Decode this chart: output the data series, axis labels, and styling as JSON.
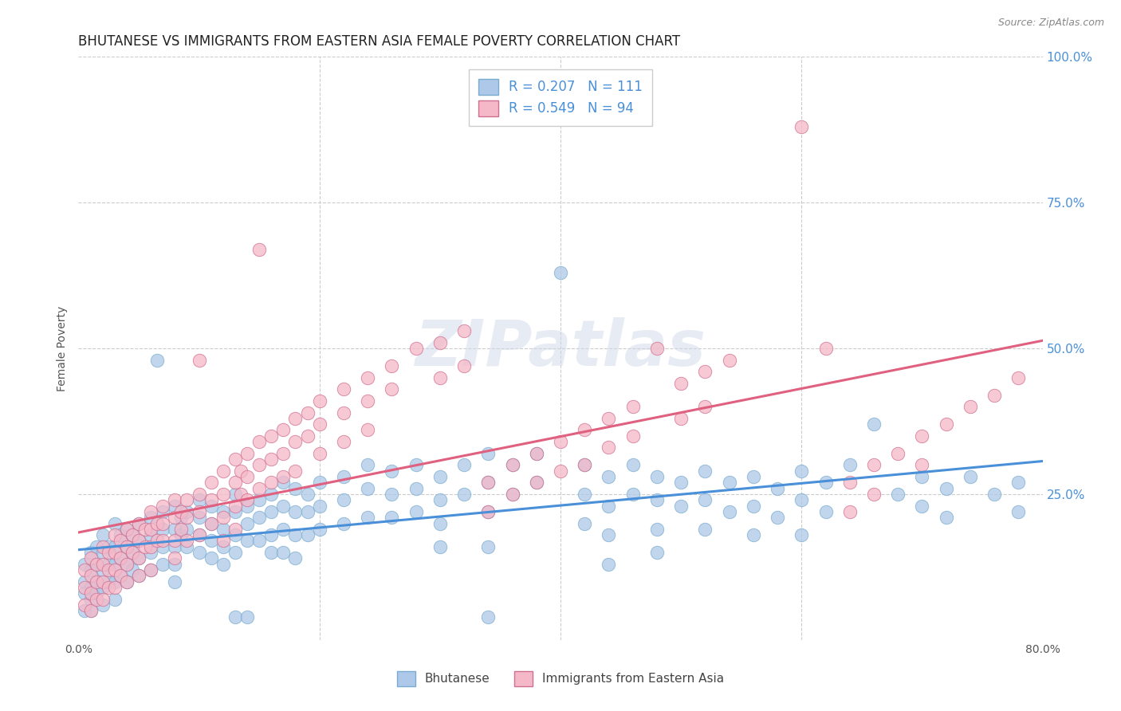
{
  "title": "BHUTANESE VS IMMIGRANTS FROM EASTERN ASIA FEMALE POVERTY CORRELATION CHART",
  "source": "Source: ZipAtlas.com",
  "ylabel": "Female Poverty",
  "xlim": [
    0.0,
    0.8
  ],
  "ylim": [
    0.0,
    1.0
  ],
  "bhutanese_color": "#adc8e8",
  "eastern_asia_color": "#f5b8c8",
  "bhutanese_R": 0.207,
  "bhutanese_N": 111,
  "eastern_asia_R": 0.549,
  "eastern_asia_N": 94,
  "trend_blue": "#4a90d9",
  "trend_pink": "#e06080",
  "legend_label_1": "Bhutanese",
  "legend_label_2": "Immigrants from Eastern Asia",
  "background_color": "#ffffff",
  "grid_color": "#cccccc",
  "title_color": "#222222",
  "axis_label_color": "#555555",
  "bhutanese_seed": 42,
  "eastern_asia_seed": 7,
  "bhutanese_points": [
    [
      0.005,
      0.13
    ],
    [
      0.005,
      0.1
    ],
    [
      0.005,
      0.08
    ],
    [
      0.005,
      0.05
    ],
    [
      0.01,
      0.15
    ],
    [
      0.01,
      0.12
    ],
    [
      0.01,
      0.09
    ],
    [
      0.01,
      0.07
    ],
    [
      0.01,
      0.05
    ],
    [
      0.015,
      0.16
    ],
    [
      0.015,
      0.13
    ],
    [
      0.015,
      0.1
    ],
    [
      0.015,
      0.08
    ],
    [
      0.02,
      0.18
    ],
    [
      0.02,
      0.15
    ],
    [
      0.02,
      0.12
    ],
    [
      0.02,
      0.09
    ],
    [
      0.02,
      0.06
    ],
    [
      0.025,
      0.16
    ],
    [
      0.025,
      0.13
    ],
    [
      0.025,
      0.1
    ],
    [
      0.03,
      0.2
    ],
    [
      0.03,
      0.16
    ],
    [
      0.03,
      0.13
    ],
    [
      0.03,
      0.1
    ],
    [
      0.03,
      0.07
    ],
    [
      0.035,
      0.18
    ],
    [
      0.035,
      0.14
    ],
    [
      0.035,
      0.11
    ],
    [
      0.04,
      0.19
    ],
    [
      0.04,
      0.16
    ],
    [
      0.04,
      0.13
    ],
    [
      0.04,
      0.1
    ],
    [
      0.045,
      0.18
    ],
    [
      0.045,
      0.15
    ],
    [
      0.045,
      0.12
    ],
    [
      0.05,
      0.2
    ],
    [
      0.05,
      0.17
    ],
    [
      0.05,
      0.14
    ],
    [
      0.05,
      0.11
    ],
    [
      0.06,
      0.21
    ],
    [
      0.06,
      0.18
    ],
    [
      0.06,
      0.15
    ],
    [
      0.06,
      0.12
    ],
    [
      0.065,
      0.48
    ],
    [
      0.07,
      0.22
    ],
    [
      0.07,
      0.19
    ],
    [
      0.07,
      0.16
    ],
    [
      0.07,
      0.13
    ],
    [
      0.08,
      0.23
    ],
    [
      0.08,
      0.19
    ],
    [
      0.08,
      0.16
    ],
    [
      0.08,
      0.13
    ],
    [
      0.08,
      0.1
    ],
    [
      0.085,
      0.21
    ],
    [
      0.085,
      0.18
    ],
    [
      0.09,
      0.22
    ],
    [
      0.09,
      0.19
    ],
    [
      0.09,
      0.16
    ],
    [
      0.1,
      0.24
    ],
    [
      0.1,
      0.21
    ],
    [
      0.1,
      0.18
    ],
    [
      0.1,
      0.15
    ],
    [
      0.11,
      0.23
    ],
    [
      0.11,
      0.2
    ],
    [
      0.11,
      0.17
    ],
    [
      0.11,
      0.14
    ],
    [
      0.12,
      0.22
    ],
    [
      0.12,
      0.19
    ],
    [
      0.12,
      0.16
    ],
    [
      0.12,
      0.13
    ],
    [
      0.13,
      0.25
    ],
    [
      0.13,
      0.22
    ],
    [
      0.13,
      0.18
    ],
    [
      0.13,
      0.15
    ],
    [
      0.13,
      0.04
    ],
    [
      0.14,
      0.23
    ],
    [
      0.14,
      0.2
    ],
    [
      0.14,
      0.17
    ],
    [
      0.14,
      0.04
    ],
    [
      0.15,
      0.24
    ],
    [
      0.15,
      0.21
    ],
    [
      0.15,
      0.17
    ],
    [
      0.16,
      0.25
    ],
    [
      0.16,
      0.22
    ],
    [
      0.16,
      0.18
    ],
    [
      0.16,
      0.15
    ],
    [
      0.17,
      0.27
    ],
    [
      0.17,
      0.23
    ],
    [
      0.17,
      0.19
    ],
    [
      0.17,
      0.15
    ],
    [
      0.18,
      0.26
    ],
    [
      0.18,
      0.22
    ],
    [
      0.18,
      0.18
    ],
    [
      0.18,
      0.14
    ],
    [
      0.19,
      0.25
    ],
    [
      0.19,
      0.22
    ],
    [
      0.19,
      0.18
    ],
    [
      0.2,
      0.27
    ],
    [
      0.2,
      0.23
    ],
    [
      0.2,
      0.19
    ],
    [
      0.22,
      0.28
    ],
    [
      0.22,
      0.24
    ],
    [
      0.22,
      0.2
    ],
    [
      0.24,
      0.3
    ],
    [
      0.24,
      0.26
    ],
    [
      0.24,
      0.21
    ],
    [
      0.26,
      0.29
    ],
    [
      0.26,
      0.25
    ],
    [
      0.26,
      0.21
    ],
    [
      0.28,
      0.3
    ],
    [
      0.28,
      0.26
    ],
    [
      0.28,
      0.22
    ],
    [
      0.3,
      0.28
    ],
    [
      0.3,
      0.24
    ],
    [
      0.3,
      0.2
    ],
    [
      0.3,
      0.16
    ],
    [
      0.32,
      0.3
    ],
    [
      0.32,
      0.25
    ],
    [
      0.34,
      0.32
    ],
    [
      0.34,
      0.27
    ],
    [
      0.34,
      0.22
    ],
    [
      0.34,
      0.16
    ],
    [
      0.34,
      0.04
    ],
    [
      0.36,
      0.3
    ],
    [
      0.36,
      0.25
    ],
    [
      0.38,
      0.32
    ],
    [
      0.38,
      0.27
    ],
    [
      0.4,
      0.63
    ],
    [
      0.42,
      0.3
    ],
    [
      0.42,
      0.25
    ],
    [
      0.42,
      0.2
    ],
    [
      0.44,
      0.28
    ],
    [
      0.44,
      0.23
    ],
    [
      0.44,
      0.18
    ],
    [
      0.44,
      0.13
    ],
    [
      0.46,
      0.3
    ],
    [
      0.46,
      0.25
    ],
    [
      0.48,
      0.28
    ],
    [
      0.48,
      0.24
    ],
    [
      0.48,
      0.19
    ],
    [
      0.48,
      0.15
    ],
    [
      0.5,
      0.27
    ],
    [
      0.5,
      0.23
    ],
    [
      0.52,
      0.29
    ],
    [
      0.52,
      0.24
    ],
    [
      0.52,
      0.19
    ],
    [
      0.54,
      0.27
    ],
    [
      0.54,
      0.22
    ],
    [
      0.56,
      0.28
    ],
    [
      0.56,
      0.23
    ],
    [
      0.56,
      0.18
    ],
    [
      0.58,
      0.26
    ],
    [
      0.58,
      0.21
    ],
    [
      0.6,
      0.29
    ],
    [
      0.6,
      0.24
    ],
    [
      0.6,
      0.18
    ],
    [
      0.62,
      0.27
    ],
    [
      0.62,
      0.22
    ],
    [
      0.64,
      0.3
    ],
    [
      0.66,
      0.37
    ],
    [
      0.68,
      0.25
    ],
    [
      0.7,
      0.28
    ],
    [
      0.7,
      0.23
    ],
    [
      0.72,
      0.26
    ],
    [
      0.72,
      0.21
    ],
    [
      0.74,
      0.28
    ],
    [
      0.76,
      0.25
    ],
    [
      0.78,
      0.27
    ],
    [
      0.78,
      0.22
    ]
  ],
  "eastern_asia_points": [
    [
      0.005,
      0.12
    ],
    [
      0.005,
      0.09
    ],
    [
      0.005,
      0.06
    ],
    [
      0.01,
      0.14
    ],
    [
      0.01,
      0.11
    ],
    [
      0.01,
      0.08
    ],
    [
      0.01,
      0.05
    ],
    [
      0.015,
      0.13
    ],
    [
      0.015,
      0.1
    ],
    [
      0.015,
      0.07
    ],
    [
      0.02,
      0.16
    ],
    [
      0.02,
      0.13
    ],
    [
      0.02,
      0.1
    ],
    [
      0.02,
      0.07
    ],
    [
      0.025,
      0.15
    ],
    [
      0.025,
      0.12
    ],
    [
      0.025,
      0.09
    ],
    [
      0.03,
      0.18
    ],
    [
      0.03,
      0.15
    ],
    [
      0.03,
      0.12
    ],
    [
      0.03,
      0.09
    ],
    [
      0.035,
      0.17
    ],
    [
      0.035,
      0.14
    ],
    [
      0.035,
      0.11
    ],
    [
      0.04,
      0.19
    ],
    [
      0.04,
      0.16
    ],
    [
      0.04,
      0.13
    ],
    [
      0.04,
      0.1
    ],
    [
      0.045,
      0.18
    ],
    [
      0.045,
      0.15
    ],
    [
      0.05,
      0.2
    ],
    [
      0.05,
      0.17
    ],
    [
      0.05,
      0.14
    ],
    [
      0.05,
      0.11
    ],
    [
      0.055,
      0.19
    ],
    [
      0.055,
      0.16
    ],
    [
      0.06,
      0.22
    ],
    [
      0.06,
      0.19
    ],
    [
      0.06,
      0.16
    ],
    [
      0.06,
      0.12
    ],
    [
      0.065,
      0.2
    ],
    [
      0.065,
      0.17
    ],
    [
      0.07,
      0.23
    ],
    [
      0.07,
      0.2
    ],
    [
      0.07,
      0.17
    ],
    [
      0.08,
      0.24
    ],
    [
      0.08,
      0.21
    ],
    [
      0.08,
      0.17
    ],
    [
      0.08,
      0.14
    ],
    [
      0.085,
      0.22
    ],
    [
      0.085,
      0.19
    ],
    [
      0.09,
      0.24
    ],
    [
      0.09,
      0.21
    ],
    [
      0.09,
      0.17
    ],
    [
      0.1,
      0.48
    ],
    [
      0.1,
      0.25
    ],
    [
      0.1,
      0.22
    ],
    [
      0.1,
      0.18
    ],
    [
      0.11,
      0.27
    ],
    [
      0.11,
      0.24
    ],
    [
      0.11,
      0.2
    ],
    [
      0.12,
      0.29
    ],
    [
      0.12,
      0.25
    ],
    [
      0.12,
      0.21
    ],
    [
      0.12,
      0.17
    ],
    [
      0.13,
      0.31
    ],
    [
      0.13,
      0.27
    ],
    [
      0.13,
      0.23
    ],
    [
      0.13,
      0.19
    ],
    [
      0.135,
      0.29
    ],
    [
      0.135,
      0.25
    ],
    [
      0.14,
      0.32
    ],
    [
      0.14,
      0.28
    ],
    [
      0.14,
      0.24
    ],
    [
      0.15,
      0.67
    ],
    [
      0.15,
      0.34
    ],
    [
      0.15,
      0.3
    ],
    [
      0.15,
      0.26
    ],
    [
      0.16,
      0.35
    ],
    [
      0.16,
      0.31
    ],
    [
      0.16,
      0.27
    ],
    [
      0.17,
      0.36
    ],
    [
      0.17,
      0.32
    ],
    [
      0.17,
      0.28
    ],
    [
      0.18,
      0.38
    ],
    [
      0.18,
      0.34
    ],
    [
      0.18,
      0.29
    ],
    [
      0.19,
      0.39
    ],
    [
      0.19,
      0.35
    ],
    [
      0.2,
      0.41
    ],
    [
      0.2,
      0.37
    ],
    [
      0.2,
      0.32
    ],
    [
      0.22,
      0.43
    ],
    [
      0.22,
      0.39
    ],
    [
      0.22,
      0.34
    ],
    [
      0.24,
      0.45
    ],
    [
      0.24,
      0.41
    ],
    [
      0.24,
      0.36
    ],
    [
      0.26,
      0.47
    ],
    [
      0.26,
      0.43
    ],
    [
      0.28,
      0.5
    ],
    [
      0.3,
      0.51
    ],
    [
      0.3,
      0.45
    ],
    [
      0.32,
      0.53
    ],
    [
      0.32,
      0.47
    ],
    [
      0.34,
      0.27
    ],
    [
      0.34,
      0.22
    ],
    [
      0.36,
      0.3
    ],
    [
      0.36,
      0.25
    ],
    [
      0.38,
      0.32
    ],
    [
      0.38,
      0.27
    ],
    [
      0.4,
      0.34
    ],
    [
      0.4,
      0.29
    ],
    [
      0.42,
      0.36
    ],
    [
      0.42,
      0.3
    ],
    [
      0.44,
      0.38
    ],
    [
      0.44,
      0.33
    ],
    [
      0.46,
      0.4
    ],
    [
      0.46,
      0.35
    ],
    [
      0.48,
      0.5
    ],
    [
      0.5,
      0.44
    ],
    [
      0.5,
      0.38
    ],
    [
      0.52,
      0.46
    ],
    [
      0.52,
      0.4
    ],
    [
      0.54,
      0.48
    ],
    [
      0.6,
      0.88
    ],
    [
      0.62,
      0.5
    ],
    [
      0.64,
      0.27
    ],
    [
      0.64,
      0.22
    ],
    [
      0.66,
      0.3
    ],
    [
      0.66,
      0.25
    ],
    [
      0.68,
      0.32
    ],
    [
      0.7,
      0.35
    ],
    [
      0.7,
      0.3
    ],
    [
      0.72,
      0.37
    ],
    [
      0.74,
      0.4
    ],
    [
      0.76,
      0.42
    ],
    [
      0.78,
      0.45
    ]
  ]
}
